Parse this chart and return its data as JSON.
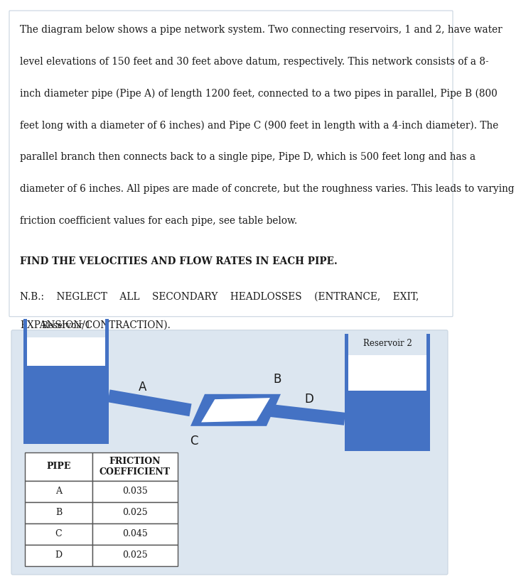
{
  "bg_color": "#ffffff",
  "panel_bg": "#dce6f0",
  "blue": "#4472c4",
  "dark_blue": "#2e4f8a",
  "text_color": "#1a1a1a",
  "body_lines": [
    "The diagram below shows a pipe network system. Two connecting reservoirs, 1 and 2, have water",
    "level elevations of 150 feet and 30 feet above datum, respectively. This network consists of a 8-",
    "inch diameter pipe (Pipe A) of length 1200 feet, connected to a two pipes in parallel, Pipe B (800",
    "feet long with a diameter of 6 inches) and Pipe C (900 feet in length with a 4-inch diameter). The",
    "parallel branch then connects back to a single pipe, Pipe D, which is 500 feet long and has a",
    "diameter of 6 inches. All pipes are made of concrete, but the roughness varies. This leads to varying",
    "friction coefficient values for each pipe, see table below."
  ],
  "bold_line": "FIND THE VELOCITIES AND FLOW RATES IN EACH PIPE.",
  "nb_line1": "N.B.:    NEGLECT    ALL    SECONDARY    HEADLOSSES    (ENTRANCE,    EXIT,",
  "nb_line2": "EXPANSION/CONTRACTION).",
  "res1_label": "Reservoir 1",
  "res2_label": "Reservoir 2",
  "label_A": "A",
  "label_B": "B",
  "label_C": "C",
  "label_D": "D",
  "col1_header": "PIPE",
  "col2_header": "FRICTION\nCOEFFICIENT",
  "table_pipes": [
    "A",
    "B",
    "C",
    "D"
  ],
  "table_friction": [
    "0.035",
    "0.025",
    "0.045",
    "0.025"
  ]
}
